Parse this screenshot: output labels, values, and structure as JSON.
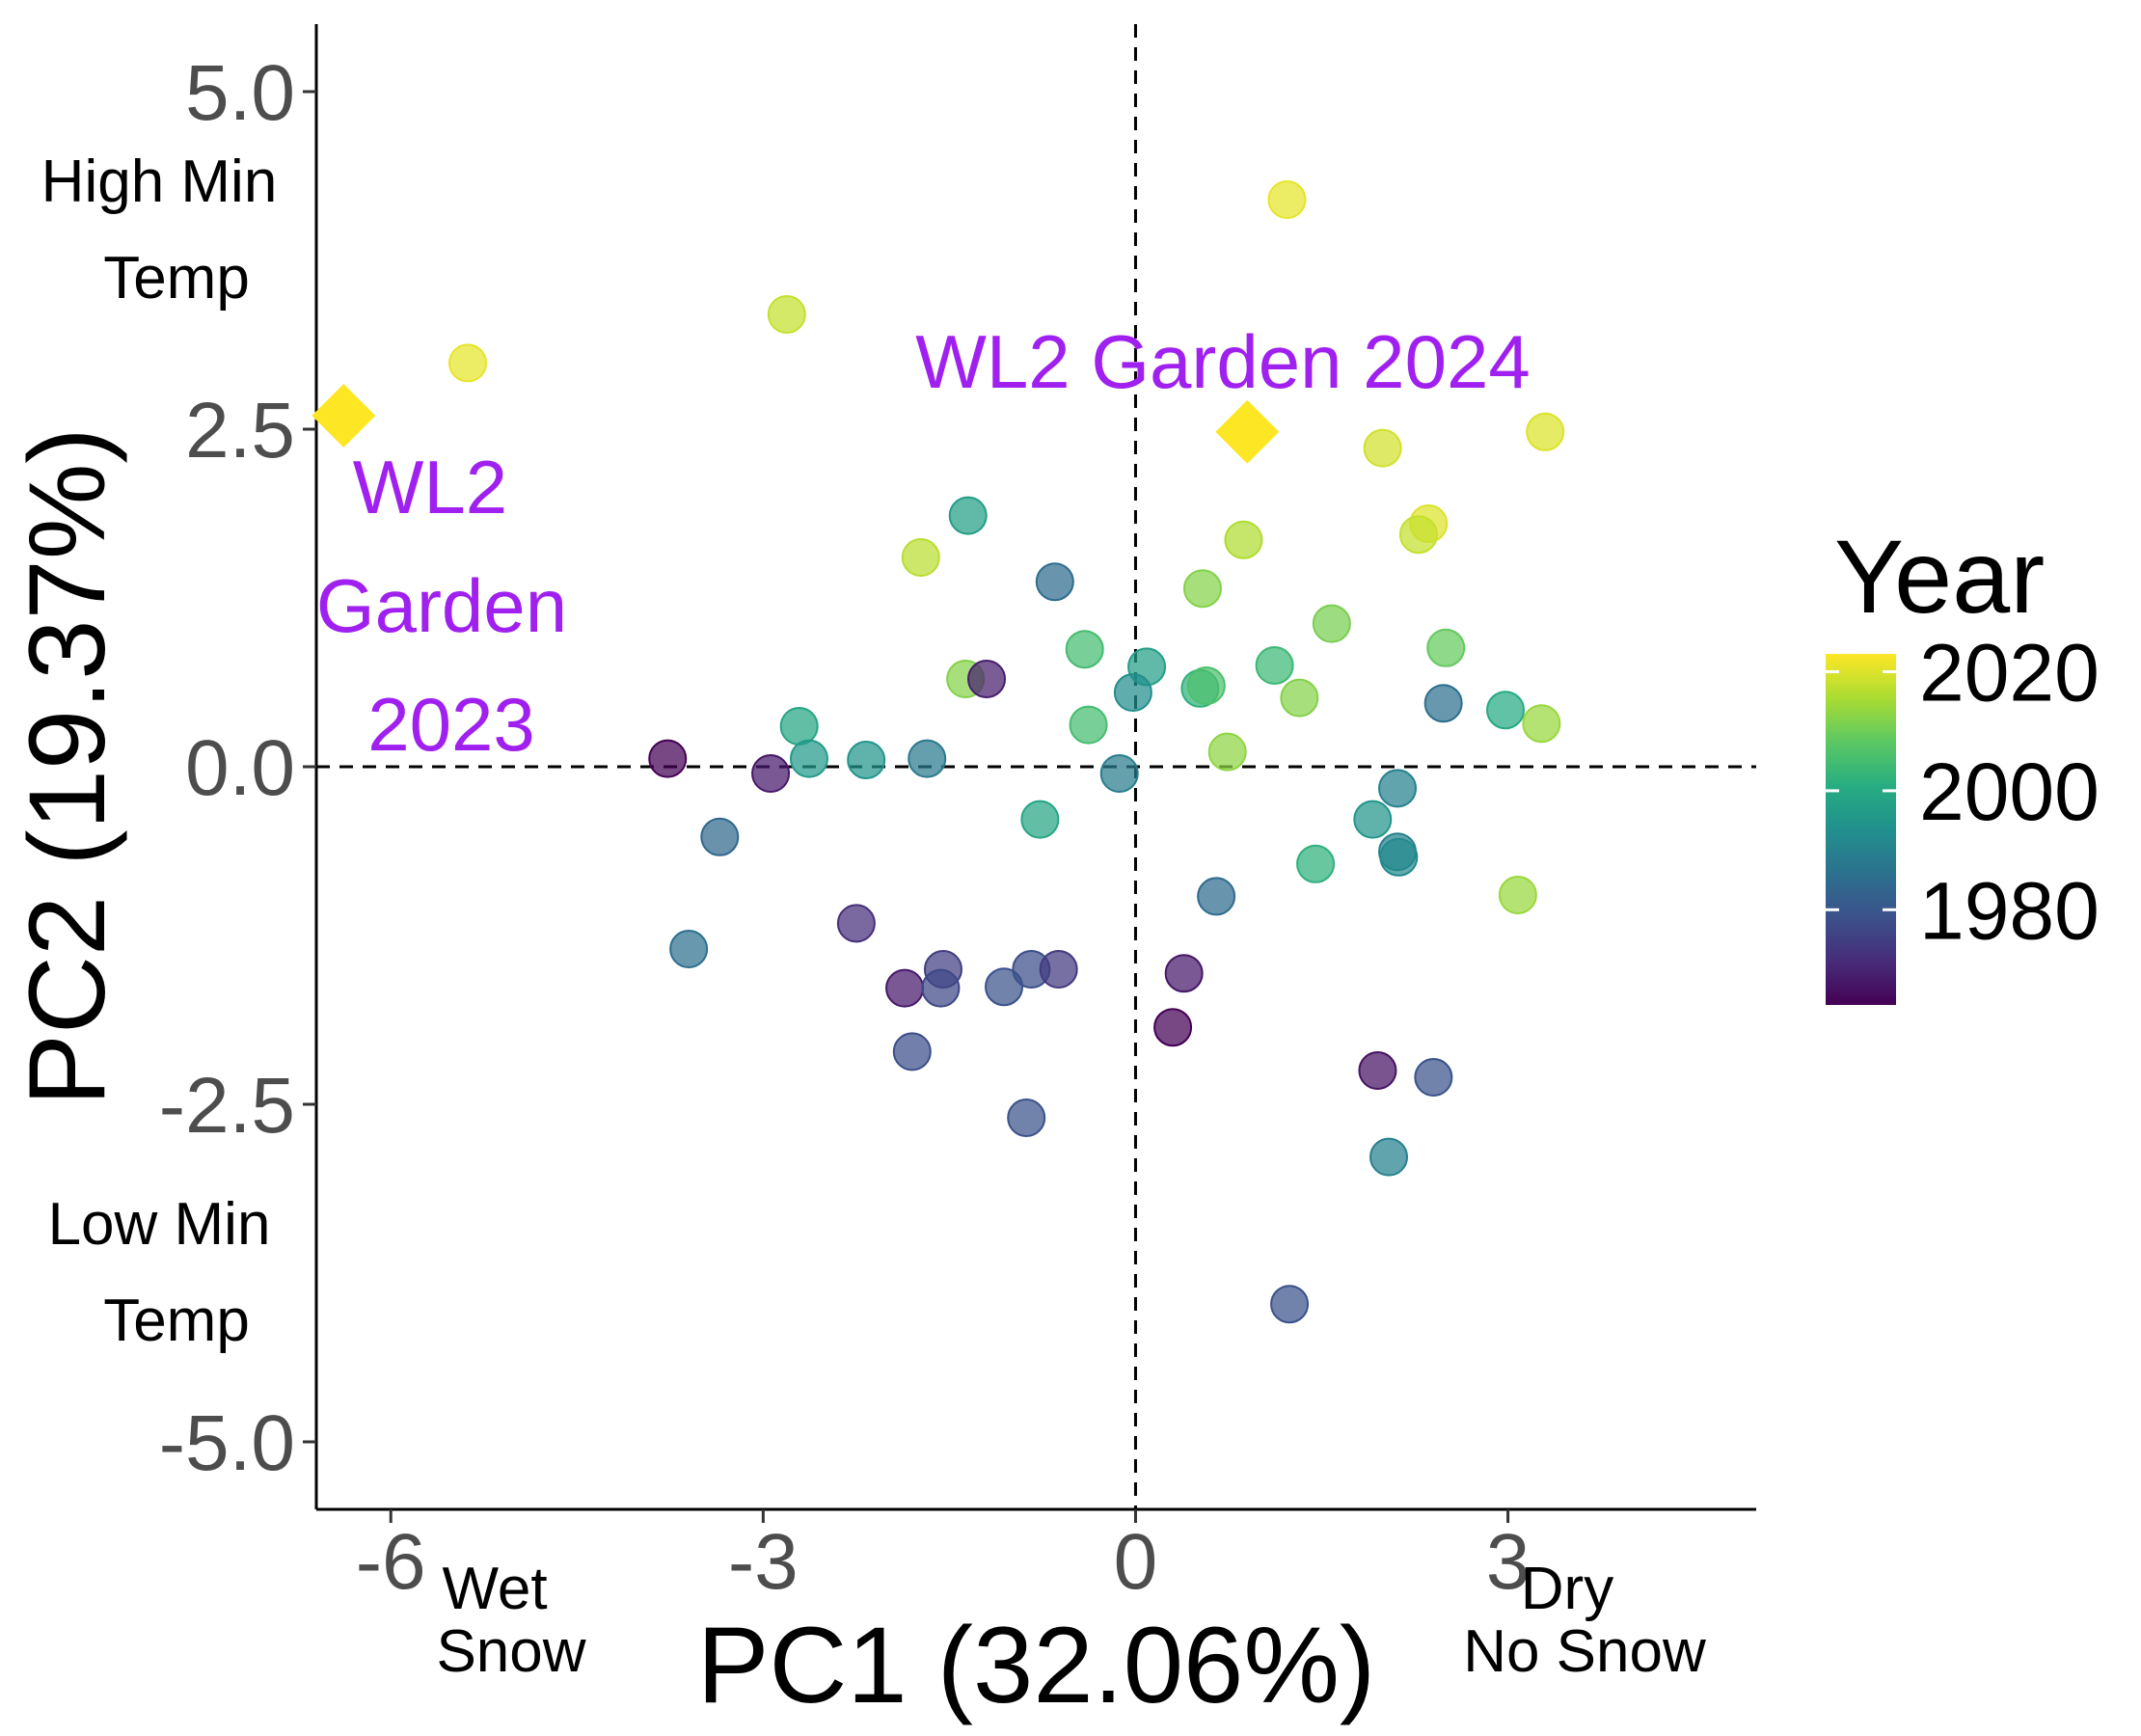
{
  "chart_data": {
    "type": "scatter",
    "xlabel": "PC1 (32.06%)",
    "ylabel": "PC2 (19.37%)",
    "xlim": [
      -6.6,
      5.0
    ],
    "ylim": [
      -5.5,
      5.5
    ],
    "x_ticks": [
      -6,
      -3,
      0,
      3
    ],
    "x_tick_labels": [
      "-6",
      "-3",
      "0",
      "3"
    ],
    "y_ticks": [
      -5,
      -2.5,
      0,
      2.5,
      5
    ],
    "y_tick_labels": [
      "-5.0",
      "-2.5",
      "0.0",
      "2.5",
      "5.0"
    ],
    "reference_lines": {
      "x": 0,
      "y": 0,
      "style": "dashed"
    },
    "x_annotations": {
      "low": [
        "Wet",
        "Snow"
      ],
      "high": [
        "Dry",
        "No Snow"
      ]
    },
    "y_annotations": {
      "high": [
        "High Min",
        "Temp"
      ],
      "low": [
        "Low Min",
        "Temp"
      ]
    },
    "legend": {
      "title": "Year",
      "type": "colorbar",
      "colormap": "viridis",
      "range": [
        1964,
        2023
      ],
      "labels": [
        "2020",
        "2000",
        "1980"
      ],
      "label_values": [
        2020,
        2000,
        1980
      ],
      "placement": "right"
    },
    "points": [
      {
        "x": 1.22,
        "y": 4.2,
        "year": 2021
      },
      {
        "x": -2.81,
        "y": 3.35,
        "year": 2018
      },
      {
        "x": -5.38,
        "y": 2.99,
        "year": 2021
      },
      {
        "x": 3.3,
        "y": 2.48,
        "year": 2020
      },
      {
        "x": 1.99,
        "y": 2.36,
        "year": 2019
      },
      {
        "x": 2.36,
        "y": 1.8,
        "year": 2020
      },
      {
        "x": 2.28,
        "y": 1.72,
        "year": 2018
      },
      {
        "x": 0.87,
        "y": 1.68,
        "year": 2016
      },
      {
        "x": -1.73,
        "y": 1.55,
        "year": 2017
      },
      {
        "x": -1.35,
        "y": 1.86,
        "year": 1997
      },
      {
        "x": -0.65,
        "y": 1.37,
        "year": 1985
      },
      {
        "x": 0.54,
        "y": 1.32,
        "year": 2012
      },
      {
        "x": 1.58,
        "y": 1.06,
        "year": 2011
      },
      {
        "x": -0.41,
        "y": 0.87,
        "year": 2005
      },
      {
        "x": 2.5,
        "y": 0.88,
        "year": 2009
      },
      {
        "x": 0.09,
        "y": 0.74,
        "year": 1997
      },
      {
        "x": 1.12,
        "y": 0.75,
        "year": 2004
      },
      {
        "x": -1.37,
        "y": 0.65,
        "year": 2012
      },
      {
        "x": -1.2,
        "y": 0.65,
        "year": 1969
      },
      {
        "x": 0.52,
        "y": 0.58,
        "year": 2002
      },
      {
        "x": 0.57,
        "y": 0.6,
        "year": 2006
      },
      {
        "x": -0.02,
        "y": 0.55,
        "year": 1993
      },
      {
        "x": 1.32,
        "y": 0.51,
        "year": 2012
      },
      {
        "x": 2.48,
        "y": 0.47,
        "year": 1986
      },
      {
        "x": 2.98,
        "y": 0.42,
        "year": 2000
      },
      {
        "x": 3.27,
        "y": 0.32,
        "year": 2014
      },
      {
        "x": -0.38,
        "y": 0.31,
        "year": 2005
      },
      {
        "x": -2.71,
        "y": 0.3,
        "year": 1999
      },
      {
        "x": -2.63,
        "y": 0.06,
        "year": 1996
      },
      {
        "x": -2.17,
        "y": 0.05,
        "year": 1995
      },
      {
        "x": -1.68,
        "y": 0.06,
        "year": 1988
      },
      {
        "x": 0.74,
        "y": 0.11,
        "year": 2013
      },
      {
        "x": -3.77,
        "y": 0.06,
        "year": 1964
      },
      {
        "x": -2.94,
        "y": -0.05,
        "year": 1968
      },
      {
        "x": -0.13,
        "y": -0.05,
        "year": 1989
      },
      {
        "x": 2.11,
        "y": -0.16,
        "year": 1990
      },
      {
        "x": -0.77,
        "y": -0.39,
        "year": 1999
      },
      {
        "x": 1.91,
        "y": -0.39,
        "year": 1995
      },
      {
        "x": -3.35,
        "y": -0.52,
        "year": 1984
      },
      {
        "x": 1.45,
        "y": -0.72,
        "year": 2002
      },
      {
        "x": 2.11,
        "y": -0.63,
        "year": 1990
      },
      {
        "x": 2.12,
        "y": -0.67,
        "year": 1992
      },
      {
        "x": 3.08,
        "y": -0.95,
        "year": 2014
      },
      {
        "x": 0.65,
        "y": -0.96,
        "year": 1985
      },
      {
        "x": -2.25,
        "y": -1.16,
        "year": 1972
      },
      {
        "x": -3.6,
        "y": -1.35,
        "year": 1986
      },
      {
        "x": -1.55,
        "y": -1.5,
        "year": 1975
      },
      {
        "x": -0.84,
        "y": -1.5,
        "year": 1978
      },
      {
        "x": -0.62,
        "y": -1.5,
        "year": 1974
      },
      {
        "x": 0.39,
        "y": -1.53,
        "year": 1968
      },
      {
        "x": -1.86,
        "y": -1.64,
        "year": 1968
      },
      {
        "x": -1.57,
        "y": -1.64,
        "year": 1977
      },
      {
        "x": -1.06,
        "y": -1.63,
        "year": 1979
      },
      {
        "x": 0.3,
        "y": -1.93,
        "year": 1964
      },
      {
        "x": -1.8,
        "y": -2.11,
        "year": 1978
      },
      {
        "x": 1.95,
        "y": -2.25,
        "year": 1967
      },
      {
        "x": 2.4,
        "y": -2.3,
        "year": 1979
      },
      {
        "x": -0.88,
        "y": -2.6,
        "year": 1979
      },
      {
        "x": 2.04,
        "y": -2.89,
        "year": 1990
      },
      {
        "x": 1.24,
        "y": -3.98,
        "year": 1979
      }
    ],
    "gardens": [
      {
        "x": -6.38,
        "y": 2.6,
        "year": 2023,
        "label_lines": [
          "WL2",
          "Garden",
          "2023"
        ]
      },
      {
        "x": 0.9,
        "y": 2.48,
        "year": 2024,
        "label_lines": [
          "WL2 Garden 2024"
        ]
      }
    ]
  }
}
